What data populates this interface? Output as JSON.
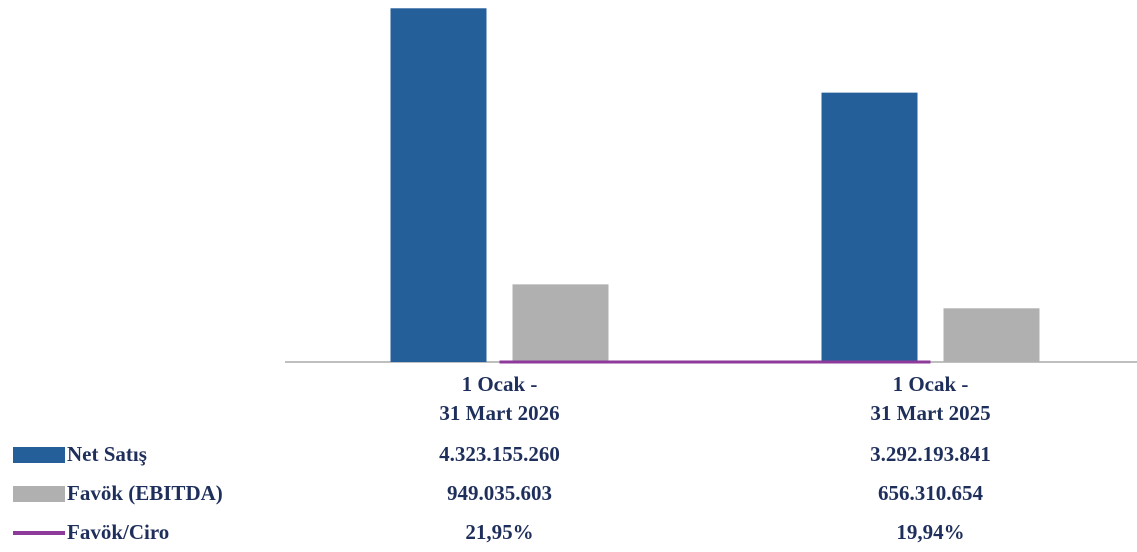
{
  "chart_data": {
    "type": "bar",
    "categories": [
      "1 Ocak -\n31 Mart 2026",
      "1 Ocak -\n31 Mart 2025"
    ],
    "ylim": [
      0,
      4400000000
    ],
    "series": [
      {
        "name": "Net Satış",
        "color": "#245f9a",
        "values": [
          4323155260,
          3292193841
        ],
        "value_labels": [
          "4.323.155.260",
          "3.292.193.841"
        ]
      },
      {
        "name": "Favök (EBITDA)",
        "color": "#b0b0b0",
        "values": [
          949035603,
          656310654
        ],
        "value_labels": [
          "949.035.603",
          "656.310.654"
        ]
      },
      {
        "name": "Favök/Ciro",
        "type": "line",
        "color": "#8e3a9a",
        "values": [
          21.95,
          19.94
        ],
        "value_labels": [
          "21,95%",
          "19,94%"
        ]
      }
    ]
  }
}
